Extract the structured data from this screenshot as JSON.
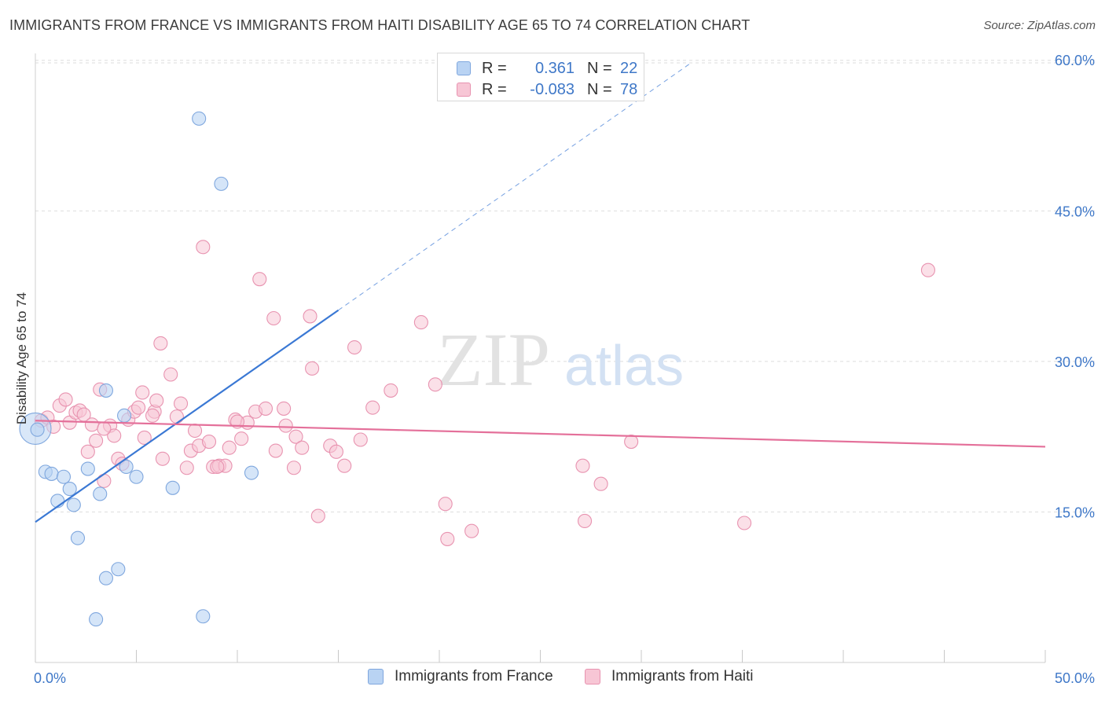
{
  "header": {
    "title": "IMMIGRANTS FROM FRANCE VS IMMIGRANTS FROM HAITI DISABILITY AGE 65 TO 74 CORRELATION CHART",
    "source": "Source: ZipAtlas.com"
  },
  "legend_top": {
    "rows": [
      {
        "r_label": "R =",
        "r_value": "0.361",
        "n_label": "N =",
        "n_value": "22"
      },
      {
        "r_label": "R =",
        "r_value": "-0.083",
        "n_label": "N =",
        "n_value": "78"
      }
    ]
  },
  "legend_bottom": {
    "france": "Immigrants from France",
    "haiti": "Immigrants from Haiti"
  },
  "colors": {
    "france_fill": "#b9d3f3",
    "france_stroke": "#7fa7de",
    "france_line": "#3a78d4",
    "haiti_fill": "#f7c6d5",
    "haiti_stroke": "#e893b0",
    "haiti_line": "#e4709a",
    "grid": "#dedede",
    "tick_label": "#3f78c8"
  },
  "watermark": {
    "zip": "ZIP",
    "atlas": "atlas"
  },
  "chart_data": {
    "type": "scatter",
    "title": "IMMIGRANTS FROM FRANCE VS IMMIGRANTS FROM HAITI DISABILITY AGE 65 TO 74 CORRELATION CHART",
    "xlabel": "",
    "ylabel": "Disability Age 65 to 74",
    "xlim": [
      0,
      50
    ],
    "ylim": [
      0,
      63
    ],
    "x_tick_labels": [
      "0.0%",
      "50.0%"
    ],
    "y_ticks": [
      15,
      30,
      45,
      60
    ],
    "y_tick_labels": [
      "15.0%",
      "30.0%",
      "45.0%",
      "60.0%"
    ],
    "series": [
      {
        "name": "Immigrants from France",
        "R": 0.361,
        "N": 22,
        "trend": {
          "x0": 0,
          "y0": 14.0,
          "x1": 15,
          "y1": 35.1,
          "dash_to_x": 32.5,
          "dash_to_y": 59.8
        },
        "points": [
          [
            0.1,
            23.2
          ],
          [
            0.5,
            19.0
          ],
          [
            0.8,
            18.8
          ],
          [
            1.1,
            16.1
          ],
          [
            1.4,
            18.5
          ],
          [
            1.7,
            17.3
          ],
          [
            1.9,
            15.7
          ],
          [
            2.1,
            12.4
          ],
          [
            2.6,
            19.3
          ],
          [
            3.2,
            16.8
          ],
          [
            3.5,
            27.1
          ],
          [
            3.5,
            8.4
          ],
          [
            4.1,
            9.3
          ],
          [
            4.4,
            24.6
          ],
          [
            4.5,
            19.5
          ],
          [
            5.0,
            18.5
          ],
          [
            3.0,
            4.3
          ],
          [
            6.8,
            17.4
          ],
          [
            8.1,
            54.2
          ],
          [
            9.2,
            47.7
          ],
          [
            8.3,
            4.6
          ],
          [
            10.7,
            18.9
          ]
        ]
      },
      {
        "name": "Immigrants from Haiti",
        "R": -0.083,
        "N": 78,
        "trend": {
          "x0": 0,
          "y0": 24.1,
          "x1": 50,
          "y1": 21.5
        },
        "points": [
          [
            0.3,
            24.1
          ],
          [
            0.6,
            24.4
          ],
          [
            0.9,
            23.5
          ],
          [
            1.2,
            25.6
          ],
          [
            1.5,
            26.2
          ],
          [
            1.7,
            23.9
          ],
          [
            2.0,
            24.9
          ],
          [
            2.2,
            25.1
          ],
          [
            2.4,
            24.7
          ],
          [
            2.6,
            21.0
          ],
          [
            2.8,
            23.7
          ],
          [
            3.0,
            22.1
          ],
          [
            3.2,
            27.2
          ],
          [
            3.4,
            18.1
          ],
          [
            3.7,
            23.6
          ],
          [
            3.9,
            22.6
          ],
          [
            4.1,
            20.3
          ],
          [
            4.3,
            19.8
          ],
          [
            4.6,
            24.2
          ],
          [
            4.9,
            25.0
          ],
          [
            5.1,
            25.4
          ],
          [
            5.3,
            26.9
          ],
          [
            5.4,
            22.4
          ],
          [
            5.9,
            25.0
          ],
          [
            6.0,
            26.1
          ],
          [
            6.2,
            31.8
          ],
          [
            6.3,
            20.3
          ],
          [
            6.7,
            28.7
          ],
          [
            7.0,
            24.5
          ],
          [
            7.2,
            25.8
          ],
          [
            7.5,
            19.4
          ],
          [
            7.7,
            21.1
          ],
          [
            7.9,
            23.1
          ],
          [
            8.1,
            21.6
          ],
          [
            8.3,
            41.4
          ],
          [
            8.6,
            22.0
          ],
          [
            8.8,
            19.5
          ],
          [
            9.1,
            19.6
          ],
          [
            9.4,
            19.6
          ],
          [
            9.6,
            21.4
          ],
          [
            9.9,
            24.2
          ],
          [
            10.2,
            22.3
          ],
          [
            10.5,
            23.9
          ],
          [
            10.9,
            25.0
          ],
          [
            11.1,
            38.2
          ],
          [
            11.4,
            25.3
          ],
          [
            11.8,
            34.3
          ],
          [
            11.9,
            21.1
          ],
          [
            12.3,
            25.3
          ],
          [
            12.4,
            23.6
          ],
          [
            12.8,
            19.4
          ],
          [
            12.9,
            22.5
          ],
          [
            13.2,
            21.4
          ],
          [
            13.6,
            34.5
          ],
          [
            13.7,
            29.3
          ],
          [
            14.0,
            14.6
          ],
          [
            14.6,
            21.6
          ],
          [
            14.9,
            21.0
          ],
          [
            15.3,
            19.6
          ],
          [
            15.8,
            31.4
          ],
          [
            16.1,
            22.2
          ],
          [
            16.7,
            25.4
          ],
          [
            17.6,
            27.1
          ],
          [
            19.1,
            33.9
          ],
          [
            19.8,
            27.7
          ],
          [
            20.3,
            15.8
          ],
          [
            20.4,
            12.3
          ],
          [
            21.6,
            13.1
          ],
          [
            27.1,
            19.6
          ],
          [
            27.2,
            14.1
          ],
          [
            28.0,
            17.8
          ],
          [
            29.5,
            22.0
          ],
          [
            35.1,
            13.9
          ],
          [
            44.2,
            39.1
          ],
          [
            3.4,
            23.3
          ],
          [
            5.8,
            24.6
          ],
          [
            9.0,
            19.5
          ],
          [
            10.0,
            24.0
          ]
        ]
      }
    ]
  }
}
